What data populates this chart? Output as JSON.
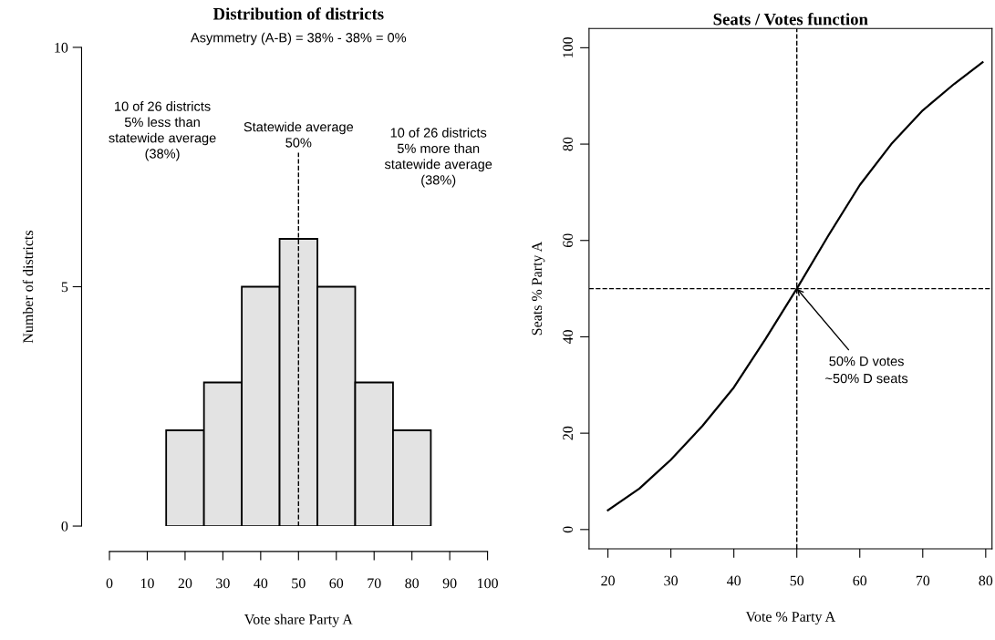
{
  "chart_data": [
    {
      "type": "histogram",
      "title": "Distribution of districts",
      "subtitle": "Asymmetry (A-B) = 38% - 38% = 0%",
      "xlabel": "Vote share Party A",
      "ylabel": "Number of districts",
      "bins": [
        15,
        25,
        35,
        45,
        55,
        65,
        75,
        85
      ],
      "values": [
        2,
        3,
        5,
        6,
        5,
        3,
        2
      ],
      "color": "#e3e3e3",
      "xlim": [
        0,
        100
      ],
      "xticks": [
        0,
        10,
        20,
        30,
        40,
        50,
        60,
        70,
        80,
        90,
        100
      ],
      "ylim": [
        0,
        10
      ],
      "yticks": [
        0,
        5,
        10
      ],
      "ref_lines": [
        {
          "axis": "x",
          "value": 50,
          "line_style": "dashed",
          "color": "#000000"
        }
      ],
      "annotations": [
        "10 of 26 districts\n5% less than\nstatewide average\n(38%)",
        "Statewide average\n50%",
        "10 of 26 districts\n5% more than\nstatewide average\n(38%)"
      ],
      "grid": false,
      "legend": false
    },
    {
      "type": "line",
      "title": "Seats / Votes function",
      "xlabel": "Vote % Party A",
      "ylabel": "Seats % Party A",
      "series": [
        {
          "color": "#000000",
          "x": [
            20,
            25,
            30,
            35,
            40,
            45,
            50,
            55,
            60,
            65,
            70,
            75,
            79.5
          ],
          "values": [
            4,
            8.5,
            14.5,
            21.5,
            29.5,
            39.5,
            50,
            61,
            71.5,
            80,
            87,
            92.5,
            97
          ]
        }
      ],
      "xlim": [
        17,
        81
      ],
      "xticks": [
        20,
        30,
        40,
        50,
        60,
        70,
        80
      ],
      "ylim": [
        -4,
        104
      ],
      "yticks": [
        0,
        20,
        40,
        60,
        80,
        100
      ],
      "ref_lines": [
        {
          "axis": "x",
          "value": 50,
          "line_style": "dashed",
          "color": "#000000"
        },
        {
          "axis": "y",
          "value": 50,
          "line_style": "dashed",
          "color": "#000000"
        }
      ],
      "annotations": [
        {
          "text": "50% D votes\n~50% D seats",
          "x": 50,
          "y": 50
        }
      ],
      "line_style": "solid",
      "marker": "none",
      "grid": false,
      "legend": false
    }
  ]
}
